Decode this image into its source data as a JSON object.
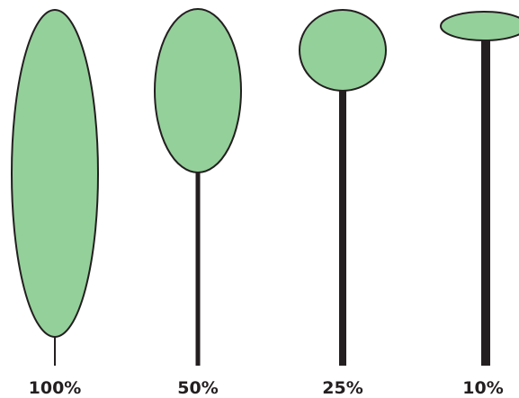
{
  "colors": {
    "balloon_fill": "#94d09a",
    "outline": "#231f20",
    "background": "#ffffff"
  },
  "figures": [
    {
      "label": "100%",
      "shape": "balloon-ellipse-tall"
    },
    {
      "label": "50%",
      "shape": "balloon-ellipse-medium"
    },
    {
      "label": "25%",
      "shape": "balloon-circle"
    },
    {
      "label": "10%",
      "shape": "balloon-ellipse-flat"
    }
  ]
}
